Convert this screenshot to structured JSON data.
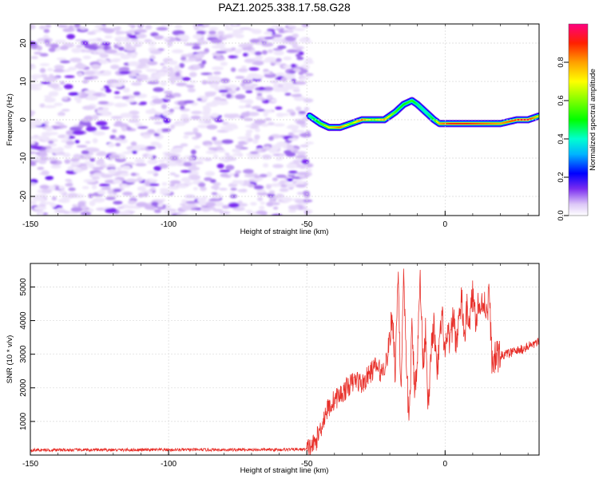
{
  "title": "PAZ1.2025.338.17.58.G28",
  "chart_data": [
    {
      "type": "heatmap",
      "name": "spectrogram",
      "xlabel": "Height of straight line (km)",
      "ylabel": "Frequency (Hz)",
      "xlim": [
        -150,
        34
      ],
      "ylim": [
        -25,
        25
      ],
      "xticks": [
        -150,
        -100,
        -50,
        0
      ],
      "yticks": [
        -20,
        -10,
        0,
        10,
        20
      ],
      "noise_region_x": [
        -150,
        -49
      ],
      "signal_ridge": {
        "x": [
          -49,
          -45,
          -42,
          -38,
          -34,
          -30,
          -26,
          -22,
          -18,
          -15,
          -12,
          -10,
          -7,
          -4,
          -2,
          2,
          8,
          14,
          20,
          26,
          30,
          34
        ],
        "freq_hz": [
          1,
          -1,
          -2,
          -2,
          -1,
          0,
          0,
          0,
          2,
          4,
          5,
          4,
          2,
          0,
          -1,
          -1,
          -1,
          -1,
          -1,
          0,
          0,
          1
        ],
        "amplitude": [
          0.4,
          0.55,
          0.7,
          0.85,
          0.6,
          0.85,
          0.6,
          0.8,
          0.55,
          0.5,
          0.55,
          0.45,
          0.4,
          0.5,
          0.8,
          0.9,
          0.9,
          0.85,
          0.8,
          0.9,
          0.95,
          0.7
        ]
      },
      "colorbar": {
        "label": "Normalized spectral amplitude",
        "ticks": [
          "0.0",
          "0.2",
          "0.4",
          "0.6",
          "0.8"
        ],
        "range": [
          0,
          1
        ]
      }
    },
    {
      "type": "line",
      "name": "snr",
      "xlabel": "Height of straight line (km)",
      "ylabel": "SNR (10 * v/v)",
      "xlim": [
        -150,
        34
      ],
      "ylim": [
        0,
        5700
      ],
      "xticks": [
        -150,
        -100,
        -50,
        0
      ],
      "yticks": [
        1000,
        2000,
        3000,
        4000,
        5000
      ],
      "color": "#e8302a",
      "series": [
        {
          "name": "SNR",
          "x": [
            -150,
            -60,
            -50,
            -47,
            -45,
            -43,
            -40,
            -37,
            -35,
            -32,
            -30,
            -27,
            -25,
            -23,
            -21,
            -19,
            -18,
            -17,
            -16,
            -15,
            -14,
            -13,
            -12,
            -11,
            -10,
            -9,
            -8,
            -7,
            -6,
            -5,
            -4,
            -3,
            -2,
            -1,
            0,
            1,
            2,
            3,
            4,
            5,
            6,
            7,
            8,
            9,
            10,
            11,
            12,
            13,
            14,
            15,
            16,
            17,
            18,
            20,
            24,
            28,
            32,
            34
          ],
          "y": [
            150,
            160,
            170,
            350,
            800,
            1300,
            1650,
            1850,
            2050,
            2250,
            2100,
            2450,
            2650,
            2450,
            2850,
            4200,
            2400,
            5600,
            1900,
            5100,
            2600,
            1000,
            3700,
            2000,
            2900,
            5300,
            2700,
            3800,
            1200,
            3200,
            3900,
            2300,
            3300,
            4100,
            3000,
            3500,
            3400,
            4200,
            3300,
            4000,
            4600,
            3500,
            4400,
            4000,
            4800,
            4100,
            4500,
            4300,
            4700,
            4200,
            4800,
            2700,
            2900,
            2950,
            3050,
            3150,
            3300,
            3350
          ]
        }
      ]
    }
  ]
}
